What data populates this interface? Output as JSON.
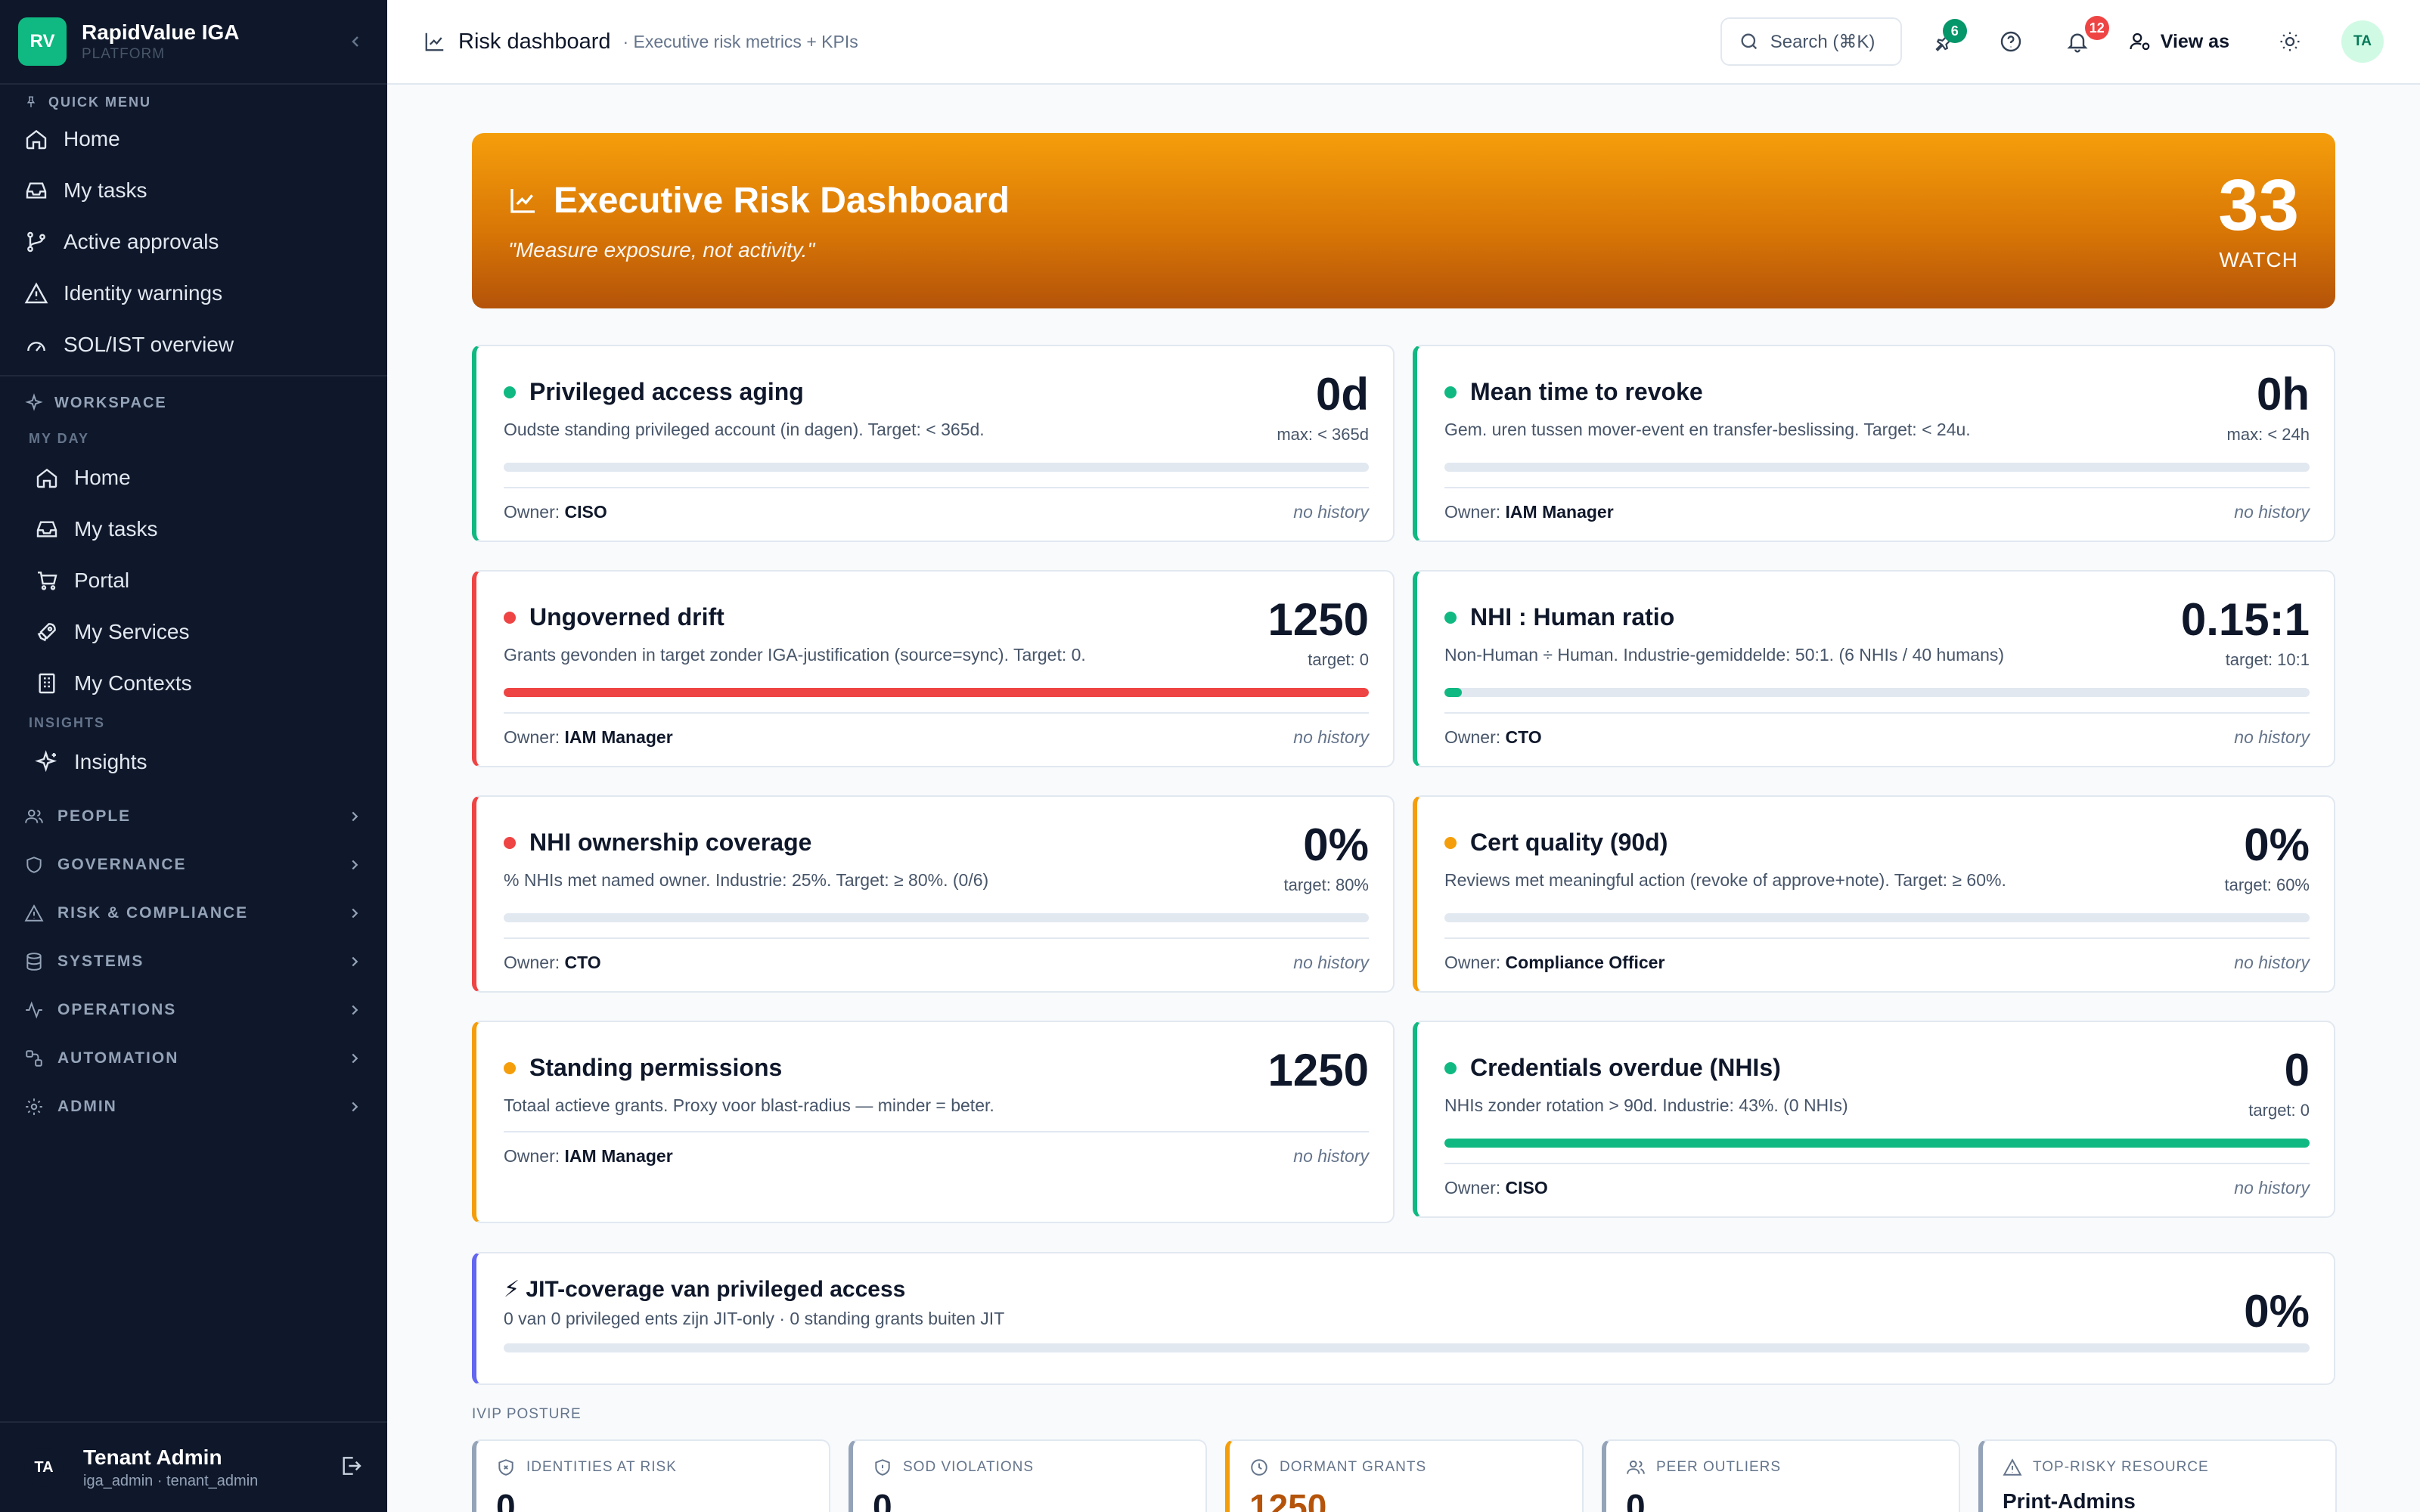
{
  "brand": {
    "logo": "RV",
    "name": "RapidValue IGA",
    "sub": "PLATFORM"
  },
  "sidebar": {
    "quick_menu_label": "QUICK MENU",
    "quick_items": [
      {
        "label": "Home",
        "icon": "home-icon"
      },
      {
        "label": "My tasks",
        "icon": "inbox-icon"
      },
      {
        "label": "Active approvals",
        "icon": "branch-icon"
      },
      {
        "label": "Identity warnings",
        "icon": "warning-icon"
      },
      {
        "label": "SOL/IST overview",
        "icon": "gauge-icon"
      }
    ],
    "workspace_label": "WORKSPACE",
    "my_day_label": "MY DAY",
    "my_day_items": [
      {
        "label": "Home",
        "icon": "home-icon"
      },
      {
        "label": "My tasks",
        "icon": "inbox-icon"
      },
      {
        "label": "Portal",
        "icon": "cart-icon"
      },
      {
        "label": "My Services",
        "icon": "rocket-icon"
      },
      {
        "label": "My Contexts",
        "icon": "building-icon"
      }
    ],
    "insights_label": "INSIGHTS",
    "insights_item": "Insights",
    "groups": [
      {
        "label": "PEOPLE",
        "icon": "users-icon"
      },
      {
        "label": "GOVERNANCE",
        "icon": "shield-icon"
      },
      {
        "label": "RISK & COMPLIANCE",
        "icon": "warning-icon"
      },
      {
        "label": "SYSTEMS",
        "icon": "database-icon"
      },
      {
        "label": "OPERATIONS",
        "icon": "activity-icon"
      },
      {
        "label": "AUTOMATION",
        "icon": "workflow-icon"
      },
      {
        "label": "ADMIN",
        "icon": "gear-icon"
      }
    ],
    "user": {
      "initials": "TA",
      "name": "Tenant Admin",
      "meta": "iga_admin · tenant_admin"
    }
  },
  "header": {
    "title": "Risk dashboard",
    "subtitle": "· Executive risk metrics + KPIs",
    "search_label": "Search (⌘K)",
    "pin_count": "6",
    "notif_count": "12",
    "view_as": "View as",
    "avatar": "TA"
  },
  "hero": {
    "title": "Executive Risk Dashboard",
    "quote": "\"Measure exposure, not activity.\"",
    "score": "33",
    "state": "WATCH"
  },
  "kpis": [
    {
      "name": "Privileged access aging",
      "desc": "Oudste standing privileged account (in dagen). Target: < 365d.",
      "value": "0d",
      "target": "max: < 365d",
      "owner_label": "Owner:",
      "owner": "CISO",
      "history": "no history",
      "status_color": "#10b981",
      "progress": 0,
      "bar_color": "#10b981"
    },
    {
      "name": "Mean time to revoke",
      "desc": "Gem. uren tussen mover-event en transfer-beslissing. Target: < 24u.",
      "value": "0h",
      "target": "max: < 24h",
      "owner_label": "Owner:",
      "owner": "IAM Manager",
      "history": "no history",
      "status_color": "#10b981",
      "progress": 0,
      "bar_color": "#10b981"
    },
    {
      "name": "Ungoverned drift",
      "desc": "Grants gevonden in target zonder IGA-justification (source=sync). Target: 0.",
      "value": "1250",
      "target": "target: 0",
      "owner_label": "Owner:",
      "owner": "IAM Manager",
      "history": "no history",
      "status_color": "#ef4444",
      "progress": 100,
      "bar_color": "#ef4444"
    },
    {
      "name": "NHI : Human ratio",
      "desc": "Non-Human ÷ Human. Industrie-gemiddelde: 50:1. (6 NHIs / 40 humans)",
      "value": "0.15:1",
      "target": "target: 10:1",
      "owner_label": "Owner:",
      "owner": "CTO",
      "history": "no history",
      "status_color": "#10b981",
      "progress": 2,
      "bar_color": "#10b981"
    },
    {
      "name": "NHI ownership coverage",
      "desc": "% NHIs met named owner. Industrie: 25%. Target: ≥ 80%. (0/6)",
      "value": "0%",
      "target": "target: 80%",
      "owner_label": "Owner:",
      "owner": "CTO",
      "history": "no history",
      "status_color": "#ef4444",
      "progress": 0,
      "bar_color": "#ef4444"
    },
    {
      "name": "Cert quality (90d)",
      "desc": "Reviews met meaningful action (revoke of approve+note). Target: ≥ 60%.",
      "value": "0%",
      "target": "target: 60%",
      "owner_label": "Owner:",
      "owner": "Compliance Officer",
      "history": "no history",
      "status_color": "#f59e0b",
      "progress": 0,
      "bar_color": "#f59e0b"
    },
    {
      "name": "Standing permissions",
      "desc": "Totaal actieve grants. Proxy voor blast-radius — minder = beter.",
      "value": "1250",
      "target": "",
      "owner_label": "Owner:",
      "owner": "IAM Manager",
      "history": "no history",
      "status_color": "#f59e0b",
      "progress": null,
      "bar_color": "#f59e0b"
    },
    {
      "name": "Credentials overdue (NHIs)",
      "desc": "NHIs zonder rotation > 90d. Industrie: 43%. (0 NHIs)",
      "value": "0",
      "target": "target: 0",
      "owner_label": "Owner:",
      "owner": "CISO",
      "history": "no history",
      "status_color": "#10b981",
      "progress": 100,
      "bar_color": "#10b981"
    }
  ],
  "jit": {
    "title": "⚡ JIT-coverage van privileged access",
    "desc": "0 van 0 privileged ents zijn JIT-only · 0 standing grants buiten JIT",
    "value": "0%",
    "progress": 0
  },
  "posture": {
    "label": "IVIP POSTURE",
    "cards": [
      {
        "label": "IDENTITIES AT RISK",
        "icon": "shield-alert-icon",
        "value": "0",
        "color": "#94a3b8"
      },
      {
        "label": "SOD VIOLATIONS",
        "icon": "shield-icon",
        "value": "0",
        "color": "#94a3b8"
      },
      {
        "label": "DORMANT GRANTS",
        "icon": "clock-icon",
        "value": "1250",
        "color": "#f59e0b"
      },
      {
        "label": "PEER OUTLIERS",
        "icon": "users-icon",
        "value": "0",
        "color": "#94a3b8"
      },
      {
        "label": "TOP-RISKY RESOURCE",
        "icon": "warning-icon",
        "value": "Print-Admins",
        "color": "#94a3b8"
      }
    ]
  }
}
